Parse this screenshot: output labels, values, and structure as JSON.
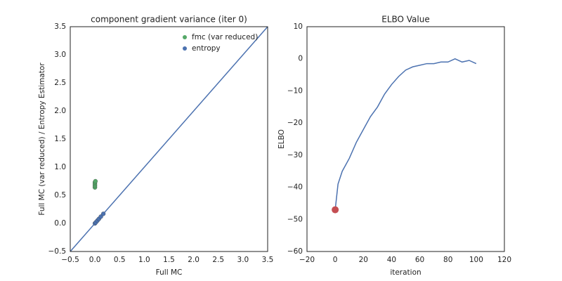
{
  "chart_data": [
    {
      "type": "scatter",
      "title": "component gradient variance (iter 0)",
      "x_label": "Full MC",
      "y_label": "Full MC (var reduced) / Entropy Estimator",
      "xlim": [
        -0.5,
        3.5
      ],
      "ylim": [
        -0.5,
        3.5
      ],
      "xticks": [
        {
          "value": -0.5,
          "label": "−0.5"
        },
        {
          "value": 0,
          "label": "0.0"
        },
        0.5,
        {
          "value": 1,
          "label": "1.0"
        },
        1.5,
        {
          "value": 2,
          "label": "2.0"
        },
        2.5,
        {
          "value": 3,
          "label": "3.0"
        },
        3.5
      ],
      "yticks": [
        {
          "value": -0.5,
          "label": "−0.5"
        },
        {
          "value": 0,
          "label": "0.0"
        },
        0.5,
        {
          "value": 1,
          "label": "1.0"
        },
        1.5,
        {
          "value": 2,
          "label": "2.0"
        },
        2.5,
        {
          "value": 3,
          "label": "3.0"
        },
        3.5
      ],
      "identity_line": true,
      "identity_color": "#4c72b0",
      "legend": "upper right",
      "series": [
        {
          "name": "fmc (var reduced)",
          "color": "#55a868",
          "x": [
            0,
            0,
            0,
            0,
            0.01
          ],
          "values": [
            0.64,
            0.67,
            0.7,
            0.73,
            0.75
          ]
        },
        {
          "name": "entropy",
          "color": "#4c72b0",
          "x": [
            0,
            0.02,
            0.05,
            0.08,
            0.12,
            0.17
          ],
          "values": [
            0,
            0.02,
            0.05,
            0.08,
            0.12,
            0.17
          ]
        }
      ]
    },
    {
      "type": "line",
      "title": "ELBO Value",
      "x_label": "iteration",
      "y_label": "ELBO",
      "xlim": [
        -20,
        120
      ],
      "ylim": [
        -60,
        10
      ],
      "xticks": [
        {
          "value": -20,
          "label": "−20"
        },
        0,
        20,
        40,
        60,
        80,
        100,
        120
      ],
      "yticks": [
        {
          "value": -60,
          "label": "−60"
        },
        {
          "value": -50,
          "label": "−50"
        },
        {
          "value": -40,
          "label": "−40"
        },
        {
          "value": -30,
          "label": "−30"
        },
        {
          "value": -20,
          "label": "−20"
        },
        {
          "value": -10,
          "label": "−10"
        },
        0,
        10
      ],
      "series": [
        {
          "color": "#4c72b0",
          "x": [
            0,
            2,
            5,
            10,
            15,
            20,
            25,
            30,
            35,
            40,
            45,
            50,
            55,
            60,
            65,
            70,
            75,
            80,
            85,
            90,
            95,
            100
          ],
          "values": [
            -47,
            -39,
            -35,
            -31,
            -26,
            -22,
            -18,
            -15,
            -11,
            -8,
            -5.5,
            -3.5,
            -2.5,
            -2,
            -1.5,
            -1.5,
            -1,
            -1,
            0,
            -1,
            -0.5,
            -1.5
          ]
        }
      ],
      "highlight": {
        "x": 0,
        "y": -47,
        "color": "#c44e52"
      }
    }
  ]
}
